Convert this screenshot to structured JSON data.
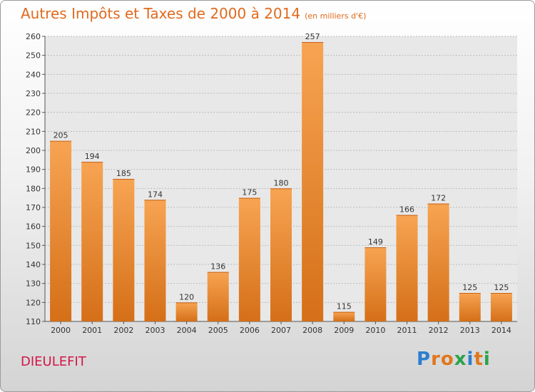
{
  "title": "Autres Impôts et Taxes de 2000 à 2014",
  "subtitle": "(en milliers d'€)",
  "town": "DIEULEFIT",
  "logo": {
    "text": "Proxiti",
    "colors": [
      "#2b7fd0",
      "#e0771e",
      "#e0771e",
      "#2aa34a",
      "#2b7fd0",
      "#e0771e",
      "#2aa34a"
    ]
  },
  "chart_data": {
    "type": "bar",
    "categories": [
      "2000",
      "2001",
      "2002",
      "2003",
      "2004",
      "2005",
      "2006",
      "2007",
      "2008",
      "2009",
      "2010",
      "2011",
      "2012",
      "2013",
      "2014"
    ],
    "values": [
      205,
      194,
      185,
      174,
      120,
      136,
      175,
      180,
      257,
      115,
      149,
      166,
      172,
      125,
      125
    ],
    "ylim": [
      110,
      260
    ],
    "yticks": [
      110,
      120,
      130,
      140,
      150,
      160,
      170,
      180,
      190,
      200,
      210,
      220,
      230,
      240,
      250,
      260
    ],
    "grid": true,
    "bar_color": "#f0963e"
  }
}
